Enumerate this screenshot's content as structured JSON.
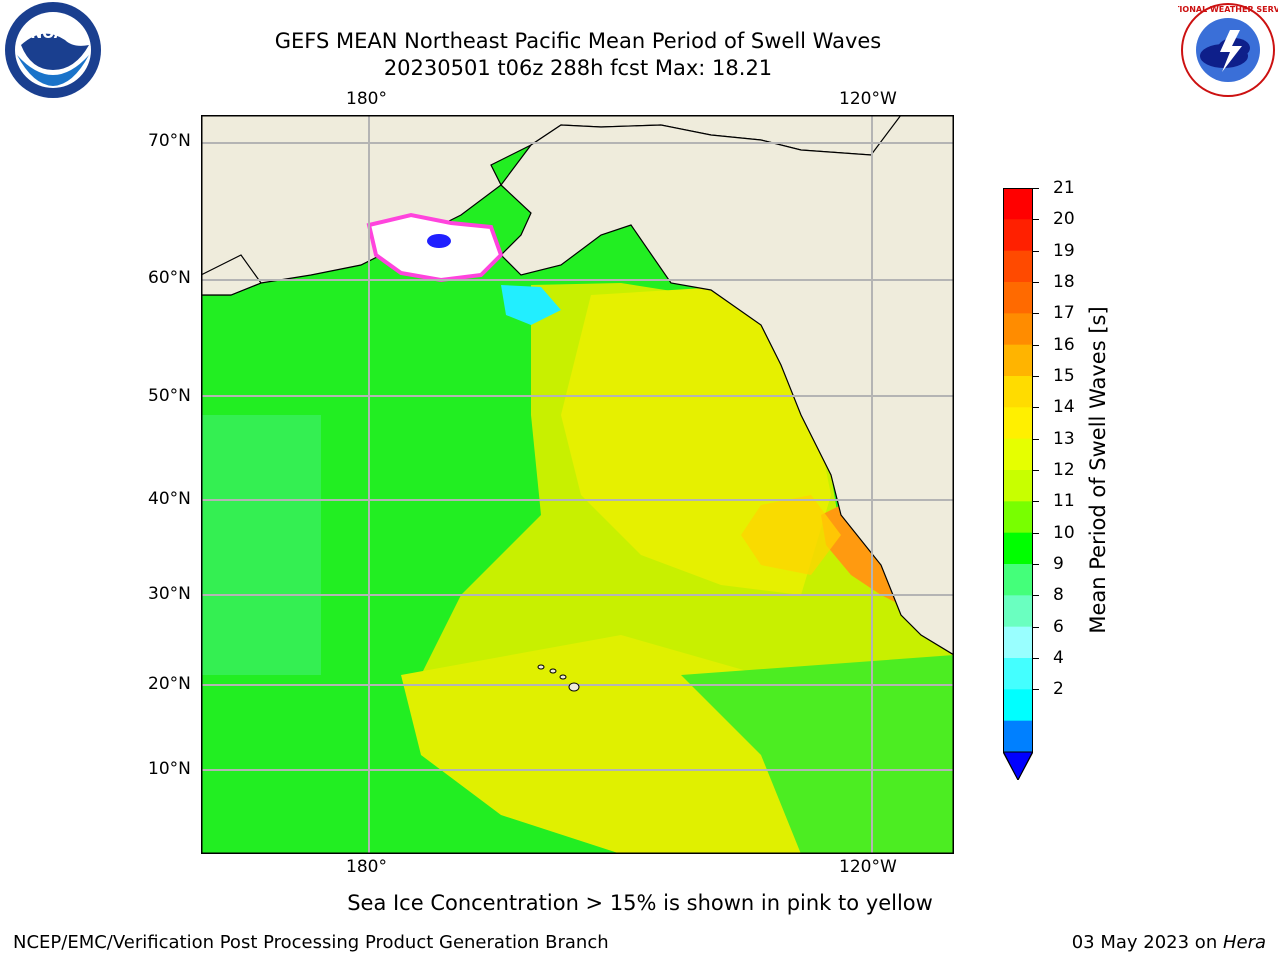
{
  "title": {
    "line1": "GEFS MEAN Northeast Pacific Mean Period of Swell Waves",
    "line2": "20230501 t06z 288h fcst   Max: 18.21"
  },
  "logos": {
    "left": {
      "icon": "noaa-logo-icon",
      "text": "NOAA"
    },
    "right": {
      "icon": "nws-logo-icon",
      "text": "NATIONAL WEATHER SERVICE"
    }
  },
  "map": {
    "top_lon_labels": [
      "180°",
      "120°W"
    ],
    "bottom_lon_labels": [
      "180°",
      "120°W"
    ],
    "lat_labels": [
      "70°N",
      "60°N",
      "50°N",
      "40°N",
      "30°N",
      "20°N",
      "10°N"
    ]
  },
  "colorbar": {
    "title": "Mean Period of Swell Waves [s]",
    "labels": [
      "21",
      "20",
      "19",
      "18",
      "17",
      "16",
      "15",
      "14",
      "13",
      "12",
      "11",
      "10",
      "9",
      "8",
      "6",
      "4",
      "2"
    ],
    "colors": [
      "#ff0000",
      "#ff2000",
      "#ff4a00",
      "#ff6a00",
      "#ff8c00",
      "#ffb400",
      "#ffdc00",
      "#fff000",
      "#e6ff00",
      "#c8ff00",
      "#78ff00",
      "#00ff00",
      "#44ff7a",
      "#6affc0",
      "#99ffff",
      "#44ffff",
      "#00ffff",
      "#0080ff"
    ],
    "extend_color": "#0000ff"
  },
  "notes": {
    "ice": "Sea Ice Concentration > 15% is shown in pink to yellow",
    "footer_left": "NCEP/EMC/Verification Post Processing Product Generation Branch",
    "footer_date": "03 May 2023 on ",
    "footer_host": "Hera"
  }
}
